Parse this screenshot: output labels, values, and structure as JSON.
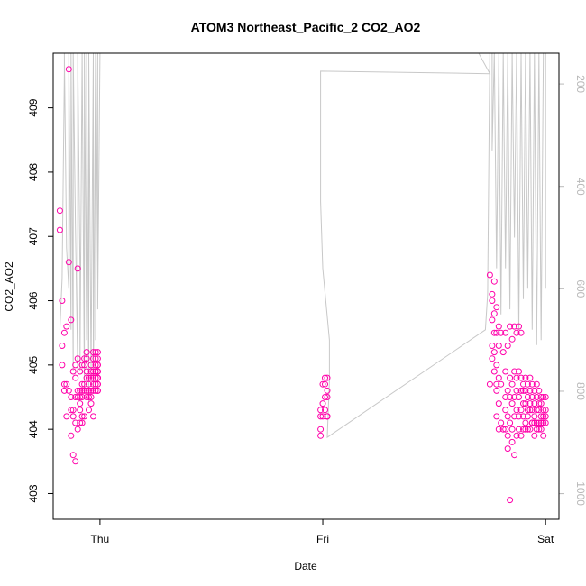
{
  "chart_data": {
    "type": "scatter",
    "title": "ATOM3 Northeast_Pacific_2 CO2_AO2",
    "xlabel": "Date",
    "ylabel": "CO2_AO2",
    "xlim": [
      -0.21,
      2.06
    ],
    "ylim": [
      402.6,
      409.85
    ],
    "x_ticks": [
      {
        "value": 0,
        "label": "Thu"
      },
      {
        "value": 1,
        "label": "Fri"
      },
      {
        "value": 2,
        "label": "Sat"
      }
    ],
    "y_ticks": [
      403,
      404,
      405,
      406,
      407,
      408,
      409
    ],
    "right_axis": {
      "label": "",
      "reversed": true,
      "range": [
        1050,
        140
      ],
      "ticks": [
        200,
        400,
        600,
        800,
        1000
      ]
    },
    "colors": {
      "points": "#ff00aa",
      "profile_line": "#c8c8c8",
      "right_axis": "#b8b8b8"
    },
    "series": [
      {
        "kind": "points",
        "x": [
          -0.18,
          -0.18,
          -0.17,
          -0.17,
          -0.17,
          -0.16,
          -0.16,
          -0.16,
          -0.15,
          -0.15,
          -0.15,
          -0.14,
          -0.14,
          -0.14,
          -0.13,
          -0.13,
          -0.13,
          -0.13,
          -0.12,
          -0.12,
          -0.12,
          -0.12,
          -0.11,
          -0.11,
          -0.11,
          -0.11,
          -0.11,
          -0.1,
          -0.1,
          -0.1,
          -0.1,
          -0.1,
          -0.09,
          -0.09,
          -0.09,
          -0.09,
          -0.09,
          -0.09,
          -0.08,
          -0.08,
          -0.08,
          -0.08,
          -0.08,
          -0.08,
          -0.07,
          -0.07,
          -0.07,
          -0.07,
          -0.07,
          -0.06,
          -0.06,
          -0.06,
          -0.06,
          -0.06,
          -0.06,
          -0.05,
          -0.05,
          -0.05,
          -0.05,
          -0.05,
          -0.04,
          -0.04,
          -0.04,
          -0.04,
          -0.04,
          -0.04,
          -0.03,
          -0.03,
          -0.03,
          -0.03,
          -0.03,
          -0.03,
          -0.03,
          -0.02,
          -0.02,
          -0.02,
          -0.02,
          -0.02,
          -0.02,
          -0.02,
          -0.02,
          -0.01,
          -0.01,
          -0.01,
          -0.01,
          -0.01,
          -0.01,
          -0.01,
          -0.01,
          -0.01,
          -0.01,
          -0.01,
          -0.01,
          -0.01,
          -0.01,
          0.99,
          0.99,
          0.99,
          0.99,
          1.0,
          1.0,
          1.0,
          1.01,
          1.01,
          1.01,
          1.01,
          1.02,
          1.02,
          1.02,
          1.02,
          1.02,
          1.02,
          1.75,
          1.75,
          1.76,
          1.76,
          1.76,
          1.76,
          1.76,
          1.77,
          1.77,
          1.77,
          1.77,
          1.77,
          1.78,
          1.78,
          1.78,
          1.78,
          1.78,
          1.78,
          1.79,
          1.79,
          1.79,
          1.79,
          1.79,
          1.8,
          1.8,
          1.8,
          1.81,
          1.81,
          1.82,
          1.82,
          1.82,
          1.82,
          1.82,
          1.83,
          1.83,
          1.83,
          1.83,
          1.83,
          1.84,
          1.84,
          1.84,
          1.84,
          1.84,
          1.85,
          1.85,
          1.85,
          1.85,
          1.85,
          1.86,
          1.86,
          1.86,
          1.86,
          1.86,
          1.87,
          1.87,
          1.87,
          1.87,
          1.87,
          1.88,
          1.88,
          1.88,
          1.88,
          1.88,
          1.89,
          1.89,
          1.89,
          1.89,
          1.89,
          1.9,
          1.9,
          1.9,
          1.9,
          1.9,
          1.91,
          1.91,
          1.91,
          1.91,
          1.91,
          1.92,
          1.92,
          1.92,
          1.92,
          1.92,
          1.93,
          1.93,
          1.93,
          1.93,
          1.93,
          1.94,
          1.94,
          1.94,
          1.94,
          1.94,
          1.95,
          1.95,
          1.95,
          1.95,
          1.95,
          1.96,
          1.96,
          1.96,
          1.96,
          1.96,
          1.97,
          1.97,
          1.97,
          1.97,
          1.97,
          1.98,
          1.98,
          1.98,
          1.98,
          1.98,
          1.99,
          1.99,
          1.99,
          1.99,
          1.99,
          2.0,
          2.0,
          2.0,
          2.0
        ],
        "y": [
          407.4,
          407.1,
          406.0,
          405.3,
          405.0,
          404.6,
          404.7,
          405.5,
          404.2,
          405.6,
          404.7,
          409.6,
          406.6,
          404.6,
          405.7,
          404.3,
          404.5,
          403.9,
          404.2,
          404.9,
          404.3,
          403.6,
          404.1,
          404.8,
          405.0,
          403.5,
          404.5,
          406.5,
          405.1,
          404.0,
          404.6,
          404.5,
          404.3,
          404.1,
          404.9,
          404.5,
          404.6,
          404.4,
          404.7,
          404.2,
          404.6,
          404.1,
          405.0,
          404.5,
          405.1,
          404.7,
          404.2,
          404.6,
          405.0,
          404.5,
          405.1,
          405.2,
          404.8,
          404.6,
          404.9,
          404.7,
          404.3,
          404.8,
          404.6,
          404.5,
          404.8,
          404.9,
          405.0,
          404.6,
          404.5,
          404.4,
          405.1,
          404.7,
          405.2,
          404.8,
          404.9,
          404.6,
          404.2,
          405.1,
          404.9,
          405.0,
          404.8,
          405.2,
          404.7,
          404.6,
          404.9,
          405.0,
          404.8,
          404.7,
          405.1,
          404.9,
          404.8,
          405.2,
          404.6,
          404.9,
          405.0,
          404.7,
          404.8,
          404.9,
          404.6,
          404.3,
          404.2,
          404.0,
          403.9,
          404.2,
          404.4,
          404.7,
          404.8,
          404.5,
          404.7,
          404.3,
          404.2,
          404.6,
          404.8,
          404.2,
          404.5,
          404.2,
          404.7,
          406.4,
          406.1,
          406.0,
          405.7,
          405.3,
          405.1,
          404.9,
          406.3,
          405.8,
          405.5,
          405.2,
          404.7,
          405.9,
          405.5,
          405.0,
          404.6,
          404.2,
          404.0,
          405.6,
          405.3,
          404.8,
          404.4,
          404.1,
          405.5,
          404.7,
          404.0,
          405.2,
          404.5,
          405.5,
          404.9,
          404.3,
          404.0,
          403.7,
          405.3,
          404.6,
          404.2,
          403.9,
          402.9,
          405.6,
          404.8,
          404.5,
          404.1,
          403.8,
          405.4,
          404.7,
          404.4,
          404.0,
          403.6,
          405.6,
          404.9,
          404.5,
          404.2,
          403.9,
          405.5,
          404.8,
          404.6,
          404.3,
          404.0,
          405.6,
          404.9,
          404.5,
          404.2,
          403.9,
          405.5,
          404.8,
          404.6,
          404.3,
          404.0,
          404.7,
          404.6,
          404.4,
          404.2,
          404.0,
          404.8,
          404.6,
          404.4,
          404.1,
          404.0,
          404.7,
          404.5,
          404.3,
          404.2,
          404.0,
          404.8,
          404.6,
          404.4,
          404.3,
          404.1,
          404.7,
          404.5,
          404.3,
          404.1,
          403.9,
          404.6,
          404.4,
          404.2,
          404.1,
          404.0,
          404.7,
          404.5,
          404.3,
          404.1,
          404.0,
          404.6,
          404.4,
          404.3,
          404.1,
          404.0,
          404.5,
          404.4,
          404.2,
          404.1,
          403.9,
          404.5,
          404.3,
          404.2,
          404.1,
          404.5,
          404.3,
          404.2,
          404.1
        ]
      },
      {
        "kind": "profile_line",
        "axis": "right",
        "x": [
          -0.18,
          -0.17,
          -0.16,
          -0.16,
          -0.15,
          -0.14,
          -0.14,
          -0.13,
          -0.13,
          -0.12,
          -0.12,
          -0.11,
          -0.1,
          -0.1,
          -0.09,
          -0.09,
          -0.08,
          -0.07,
          -0.07,
          -0.06,
          -0.06,
          -0.05,
          -0.05,
          -0.04,
          -0.03,
          -0.03,
          -0.02,
          -0.02,
          -0.01,
          -0.01,
          0.0,
          0.05,
          0.6,
          1.7,
          1.75,
          1.75,
          0.99,
          0.99,
          0.99,
          1.0,
          1.03,
          1.03,
          1.02,
          1.73,
          1.74,
          1.75,
          1.76,
          1.76,
          1.77,
          1.78,
          1.79,
          1.8,
          1.81,
          1.82,
          1.83,
          1.84,
          1.85,
          1.86,
          1.87,
          1.88,
          1.89,
          1.9,
          1.91,
          1.92,
          1.93,
          1.94,
          1.95,
          1.96,
          1.97,
          1.98,
          1.99,
          2.0,
          2.0
        ],
        "y": [
          680,
          580,
          180,
          140,
          520,
          600,
          140,
          680,
          140,
          760,
          140,
          480,
          760,
          140,
          560,
          760,
          140,
          800,
          140,
          700,
          140,
          820,
          140,
          760,
          140,
          800,
          140,
          700,
          140,
          640,
          140,
          140,
          140,
          140,
          180,
          180,
          175,
          310,
          430,
          560,
          700,
          780,
          890,
          680,
          610,
          120,
          140,
          330,
          140,
          560,
          140,
          650,
          140,
          560,
          140,
          640,
          140,
          500,
          140,
          680,
          140,
          620,
          140,
          600,
          140,
          680,
          140,
          710,
          140,
          700,
          140,
          140,
          600
        ]
      }
    ]
  }
}
